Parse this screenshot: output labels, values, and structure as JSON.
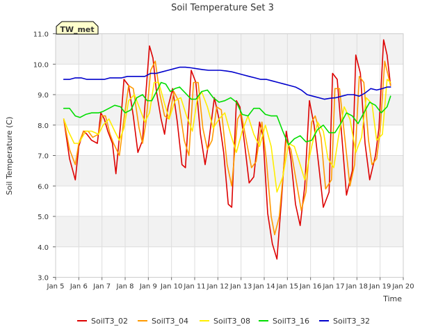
{
  "chart_data": {
    "type": "line",
    "title": "Soil Temperature Set 3",
    "xlabel": "Time",
    "ylabel": "Soil Temperature (C)",
    "site_label": "TW_met",
    "ylim": [
      3.0,
      11.0
    ],
    "xlim": [
      5,
      20
    ],
    "y_ticks": [
      "3.0",
      "4.0",
      "5.0",
      "6.0",
      "7.0",
      "8.0",
      "9.0",
      "10.0",
      "11.0"
    ],
    "x_ticks": [
      "Jan 5",
      "Jan 6",
      "Jan 7",
      "Jan 8",
      "Jan 9",
      "Jan 10",
      "Jan 11",
      "Jan 12",
      "Jan 13",
      "Jan 14",
      "Jan 15",
      "Jan 16",
      "Jan 17",
      "Jan 18",
      "Jan 19",
      "Jan 20"
    ],
    "grid": true,
    "legend_position": "bottom",
    "series": [
      {
        "name": "SoilT3_02",
        "color": "#dd0000",
        "x": [
          5.35,
          5.6,
          5.85,
          6.0,
          6.2,
          6.35,
          6.55,
          6.8,
          6.95,
          7.1,
          7.25,
          7.45,
          7.6,
          7.8,
          7.95,
          8.15,
          8.35,
          8.55,
          8.75,
          8.85,
          9.05,
          9.2,
          9.35,
          9.55,
          9.7,
          9.85,
          10.05,
          10.25,
          10.45,
          10.6,
          10.85,
          11.05,
          11.25,
          11.45,
          11.6,
          11.85,
          12.05,
          12.25,
          12.45,
          12.6,
          12.8,
          12.95,
          13.15,
          13.35,
          13.55,
          13.8,
          13.95,
          14.15,
          14.35,
          14.55,
          14.75,
          14.95,
          15.15,
          15.35,
          15.55,
          15.75,
          15.95,
          16.15,
          16.35,
          16.55,
          16.8,
          16.95,
          17.15,
          17.35,
          17.55,
          17.8,
          17.95,
          18.15,
          18.35,
          18.55,
          18.8,
          18.95,
          19.15,
          19.3,
          19.45
        ],
        "values": [
          8.2,
          6.9,
          6.2,
          7.3,
          7.8,
          7.7,
          7.5,
          7.4,
          8.4,
          8.2,
          7.8,
          7.4,
          6.4,
          8.0,
          9.5,
          9.3,
          8.3,
          7.1,
          7.5,
          8.6,
          10.6,
          10.2,
          9.1,
          8.2,
          7.7,
          8.6,
          9.2,
          8.1,
          6.7,
          6.6,
          9.8,
          9.4,
          7.7,
          6.7,
          7.4,
          8.9,
          8.2,
          7.1,
          5.4,
          5.3,
          8.8,
          8.6,
          7.4,
          6.1,
          6.3,
          8.1,
          7.6,
          5.1,
          4.1,
          3.6,
          5.6,
          7.8,
          6.9,
          5.4,
          4.7,
          6.0,
          8.8,
          8.0,
          6.7,
          5.3,
          5.8,
          9.7,
          9.5,
          7.6,
          5.7,
          6.5,
          10.3,
          9.7,
          7.4,
          6.2,
          7.0,
          7.9,
          10.8,
          10.3,
          9.3
        ]
      },
      {
        "name": "SoilT3_04",
        "color": "#ff9900",
        "x": [
          5.35,
          5.6,
          5.85,
          6.0,
          6.2,
          6.4,
          6.6,
          6.85,
          7.0,
          7.15,
          7.35,
          7.5,
          7.75,
          7.95,
          8.15,
          8.35,
          8.6,
          8.75,
          8.9,
          9.1,
          9.3,
          9.5,
          9.7,
          9.9,
          10.1,
          10.3,
          10.55,
          10.75,
          10.95,
          11.15,
          11.35,
          11.55,
          11.75,
          11.95,
          12.15,
          12.4,
          12.6,
          12.85,
          13.0,
          13.25,
          13.45,
          13.65,
          13.9,
          14.1,
          14.3,
          14.45,
          14.65,
          14.95,
          15.15,
          15.35,
          15.6,
          15.8,
          16.05,
          16.2,
          16.45,
          16.65,
          16.9,
          17.05,
          17.25,
          17.5,
          17.7,
          17.9,
          18.1,
          18.3,
          18.5,
          18.65,
          18.85,
          19.0,
          19.2,
          19.45
        ],
        "values": [
          8.2,
          7.2,
          6.7,
          7.4,
          7.8,
          7.8,
          7.6,
          7.7,
          8.3,
          8.3,
          7.7,
          7.4,
          7.0,
          8.2,
          9.3,
          9.2,
          7.9,
          7.4,
          8.1,
          9.8,
          10.1,
          9.0,
          8.3,
          8.2,
          9.1,
          8.8,
          7.5,
          7.0,
          9.4,
          9.4,
          7.9,
          7.2,
          7.5,
          8.6,
          8.5,
          6.7,
          6.0,
          8.2,
          8.4,
          7.4,
          6.6,
          6.8,
          8.1,
          6.8,
          5.0,
          4.4,
          5.0,
          7.5,
          7.2,
          6.3,
          5.2,
          5.8,
          8.1,
          8.3,
          7.6,
          5.9,
          6.2,
          9.2,
          9.2,
          7.4,
          6.0,
          6.7,
          9.6,
          9.4,
          7.5,
          6.7,
          6.9,
          7.8,
          10.1,
          9.3
        ]
      },
      {
        "name": "SoilT3_08",
        "color": "#ffee00",
        "x": [
          5.35,
          5.55,
          5.8,
          6.0,
          6.3,
          6.55,
          6.85,
          7.05,
          7.3,
          7.55,
          7.75,
          7.95,
          8.15,
          8.4,
          8.65,
          8.85,
          9.05,
          9.25,
          9.45,
          9.7,
          9.9,
          10.15,
          10.4,
          10.65,
          10.9,
          11.1,
          11.3,
          11.55,
          11.8,
          12.05,
          12.3,
          12.55,
          12.8,
          13.05,
          13.3,
          13.55,
          13.8,
          14.05,
          14.3,
          14.55,
          14.8,
          15.05,
          15.3,
          15.55,
          15.75,
          16.05,
          16.3,
          16.55,
          16.75,
          17.0,
          17.2,
          17.45,
          17.7,
          17.95,
          18.2,
          18.4,
          18.65,
          18.85,
          19.1,
          19.3,
          19.45
        ],
        "values": [
          8.2,
          7.8,
          7.4,
          7.4,
          7.8,
          7.8,
          7.7,
          8.0,
          8.2,
          7.8,
          7.5,
          7.9,
          8.8,
          9.0,
          8.5,
          8.1,
          8.4,
          9.4,
          9.4,
          8.7,
          8.2,
          8.8,
          8.9,
          8.3,
          7.8,
          8.8,
          9.1,
          8.6,
          7.9,
          8.2,
          8.4,
          7.7,
          7.1,
          7.8,
          8.3,
          7.7,
          7.3,
          8.0,
          7.3,
          5.8,
          6.3,
          7.4,
          7.3,
          6.7,
          6.2,
          7.3,
          8.1,
          7.8,
          6.9,
          6.6,
          7.6,
          8.6,
          8.2,
          7.1,
          7.6,
          8.9,
          8.7,
          7.5,
          7.7,
          9.5,
          9.4
        ]
      },
      {
        "name": "SoilT3_16",
        "color": "#00dd00",
        "x": [
          5.35,
          5.6,
          5.85,
          6.05,
          6.3,
          6.55,
          6.85,
          7.05,
          7.3,
          7.55,
          7.8,
          8.0,
          8.25,
          8.5,
          8.75,
          8.95,
          9.15,
          9.35,
          9.55,
          9.75,
          9.95,
          10.15,
          10.35,
          10.6,
          10.85,
          11.05,
          11.3,
          11.55,
          11.8,
          12.05,
          12.3,
          12.55,
          12.8,
          13.05,
          13.3,
          13.55,
          13.8,
          14.05,
          14.3,
          14.55,
          14.8,
          15.05,
          15.3,
          15.55,
          15.8,
          16.05,
          16.3,
          16.55,
          16.8,
          17.05,
          17.3,
          17.55,
          17.8,
          18.05,
          18.3,
          18.55,
          18.8,
          19.05,
          19.3,
          19.45
        ],
        "values": [
          8.55,
          8.55,
          8.3,
          8.25,
          8.35,
          8.4,
          8.4,
          8.45,
          8.55,
          8.65,
          8.6,
          8.4,
          8.5,
          8.9,
          9.0,
          8.8,
          8.8,
          9.1,
          9.4,
          9.35,
          9.1,
          9.2,
          9.25,
          9.05,
          8.85,
          8.85,
          9.1,
          9.15,
          8.9,
          8.75,
          8.8,
          8.9,
          8.75,
          8.35,
          8.3,
          8.55,
          8.55,
          8.35,
          8.3,
          8.3,
          7.8,
          7.35,
          7.55,
          7.65,
          7.45,
          7.5,
          7.85,
          8.0,
          7.75,
          7.75,
          8.05,
          8.4,
          8.3,
          8.05,
          8.4,
          8.75,
          8.65,
          8.4,
          8.6,
          8.95
        ]
      },
      {
        "name": "SoilT3_32",
        "color": "#0000cc",
        "x": [
          5.35,
          5.6,
          5.85,
          6.1,
          6.35,
          6.6,
          6.85,
          7.1,
          7.35,
          7.6,
          7.85,
          8.1,
          8.35,
          8.6,
          8.85,
          9.1,
          9.35,
          9.6,
          9.85,
          10.1,
          10.35,
          10.6,
          10.85,
          11.1,
          11.35,
          11.6,
          11.85,
          12.1,
          12.35,
          12.6,
          12.85,
          13.1,
          13.35,
          13.6,
          13.85,
          14.1,
          14.35,
          14.6,
          14.85,
          15.1,
          15.35,
          15.6,
          15.85,
          16.1,
          16.35,
          16.6,
          16.85,
          17.1,
          17.35,
          17.6,
          17.85,
          18.1,
          18.35,
          18.6,
          18.85,
          19.1,
          19.3,
          19.45
        ],
        "values": [
          9.5,
          9.5,
          9.55,
          9.55,
          9.5,
          9.5,
          9.5,
          9.5,
          9.55,
          9.55,
          9.55,
          9.6,
          9.6,
          9.6,
          9.6,
          9.7,
          9.7,
          9.75,
          9.8,
          9.85,
          9.9,
          9.9,
          9.88,
          9.85,
          9.82,
          9.8,
          9.8,
          9.8,
          9.78,
          9.75,
          9.7,
          9.65,
          9.6,
          9.55,
          9.5,
          9.5,
          9.45,
          9.4,
          9.35,
          9.3,
          9.25,
          9.15,
          9.0,
          8.95,
          8.9,
          8.85,
          8.88,
          8.9,
          8.95,
          9.0,
          9.0,
          8.95,
          9.05,
          9.2,
          9.15,
          9.2,
          9.25,
          9.25
        ]
      }
    ]
  }
}
